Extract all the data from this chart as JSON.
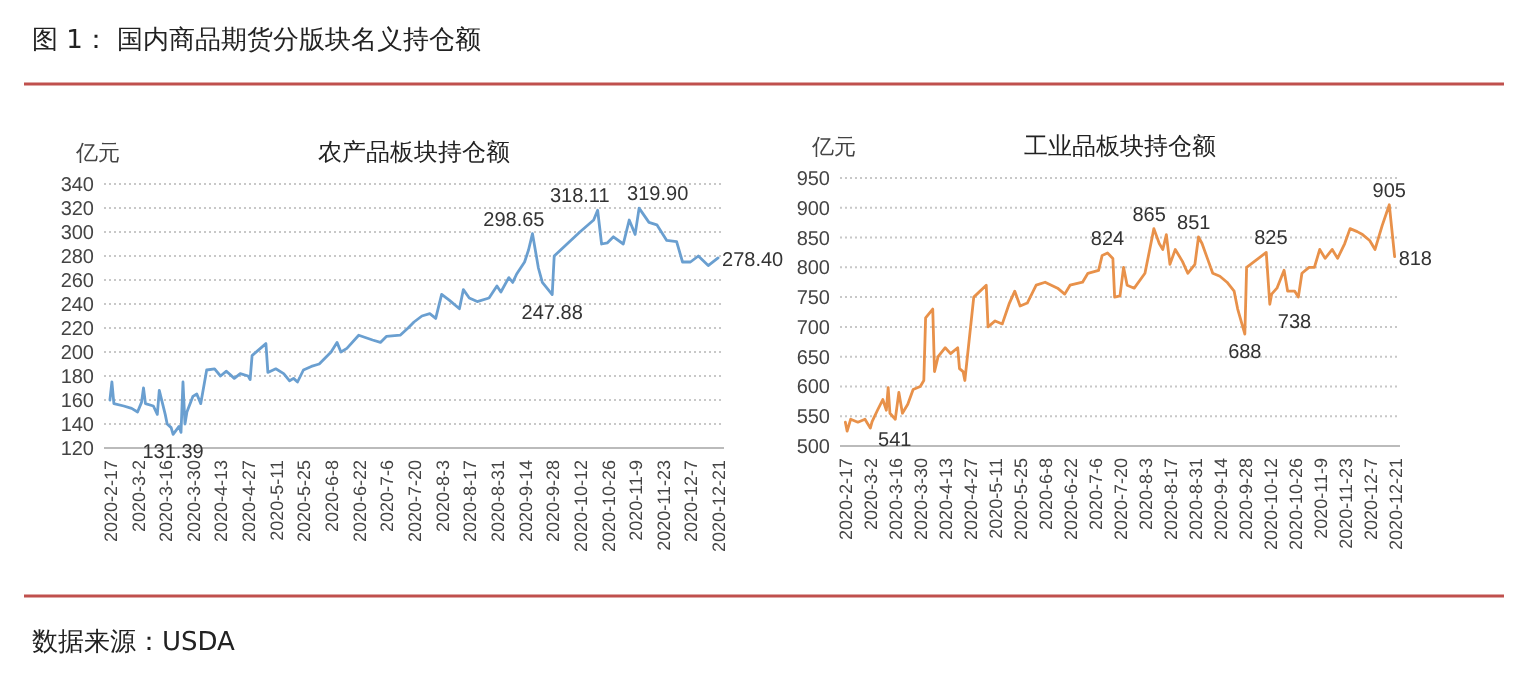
{
  "chart_data": [
    {
      "type": "line",
      "title": "农产品板块持仓额",
      "ylabel": "亿元",
      "annotations": [
        "图 1：  国内商品期货分版块名义持仓额",
        "数据来源：USDA",
        {
          "text": "131.39",
          "x": "2020-03-20",
          "y": 131.39
        },
        {
          "text": "298.65",
          "x": "2020-09-18",
          "y": 298.65
        },
        {
          "text": "247.88",
          "x": "2020-09-28",
          "y": 247.88
        },
        {
          "text": "318.11",
          "x": "2020-10-21",
          "y": 318.11
        },
        {
          "text": "319.90",
          "x": "2020-11-11",
          "y": 319.9
        },
        {
          "text": "278.40",
          "x": "2020-12-21",
          "y": 278.4
        }
      ],
      "x": [
        "2020-02-17",
        "2020-02-18",
        "2020-02-19",
        "2020-02-24",
        "2020-02-28",
        "2020-03-02",
        "2020-03-04",
        "2020-03-05",
        "2020-03-06",
        "2020-03-10",
        "2020-03-12",
        "2020-03-13",
        "2020-03-16",
        "2020-03-17",
        "2020-03-19",
        "2020-03-20",
        "2020-03-23",
        "2020-03-24",
        "2020-03-25",
        "2020-03-26",
        "2020-03-27",
        "2020-03-30",
        "2020-04-01",
        "2020-04-03",
        "2020-04-06",
        "2020-04-10",
        "2020-04-13",
        "2020-04-16",
        "2020-04-20",
        "2020-04-23",
        "2020-04-27",
        "2020-04-28",
        "2020-04-29",
        "2020-05-06",
        "2020-05-07",
        "2020-05-11",
        "2020-05-15",
        "2020-05-18",
        "2020-05-20",
        "2020-05-22",
        "2020-05-25",
        "2020-05-29",
        "2020-06-02",
        "2020-06-08",
        "2020-06-11",
        "2020-06-13",
        "2020-06-16",
        "2020-06-22",
        "2020-06-29",
        "2020-07-03",
        "2020-07-06",
        "2020-07-13",
        "2020-07-17",
        "2020-07-20",
        "2020-07-24",
        "2020-07-28",
        "2020-07-31",
        "2020-08-03",
        "2020-08-07",
        "2020-08-12",
        "2020-08-14",
        "2020-08-17",
        "2020-08-21",
        "2020-08-27",
        "2020-08-31",
        "2020-09-02",
        "2020-09-06",
        "2020-09-08",
        "2020-09-10",
        "2020-09-14",
        "2020-09-16",
        "2020-09-18",
        "2020-09-21",
        "2020-09-23",
        "2020-09-28",
        "2020-09-29",
        "2020-10-12",
        "2020-10-19",
        "2020-10-21",
        "2020-10-23",
        "2020-10-26",
        "2020-10-29",
        "2020-11-03",
        "2020-11-06",
        "2020-11-09",
        "2020-11-11",
        "2020-11-16",
        "2020-11-20",
        "2020-11-25",
        "2020-11-30",
        "2020-12-03",
        "2020-12-07",
        "2020-12-11",
        "2020-12-16",
        "2020-12-21"
      ],
      "series": [
        {
          "color": "#6a9fd0",
          "values": [
            160,
            175,
            157,
            155,
            153,
            150,
            158,
            170,
            157,
            155,
            148,
            168,
            148,
            140,
            137,
            131.39,
            138,
            133,
            175,
            140,
            150,
            163,
            165,
            157,
            185,
            186,
            180,
            184,
            178,
            182,
            180,
            177,
            197,
            207,
            183,
            186,
            182,
            176,
            178,
            175,
            185,
            188,
            190,
            200,
            208,
            200,
            203,
            214,
            210,
            208,
            213,
            214,
            220,
            225,
            230,
            232,
            228,
            248,
            243,
            236,
            252,
            245,
            242,
            245,
            255,
            250,
            262,
            258,
            265,
            275,
            285,
            298.65,
            270,
            258,
            247.88,
            280,
            300,
            310,
            318.11,
            290,
            291,
            296,
            290,
            310,
            298,
            319.9,
            308,
            306,
            293,
            292,
            275,
            275,
            280,
            272,
            278.4
          ]
        }
      ],
      "xlim": [
        "2020-02-14",
        "2020-12-24"
      ],
      "ylim": [
        120,
        340
      ],
      "yticks": [
        120,
        140,
        160,
        180,
        200,
        220,
        240,
        260,
        280,
        300,
        320,
        340
      ],
      "xticks": [
        {
          "value": "2020-02-17",
          "label": "2020-2-17"
        },
        {
          "value": "2020-03-02",
          "label": "2020-3-2"
        },
        {
          "value": "2020-03-16",
          "label": "2020-3-16"
        },
        {
          "value": "2020-03-30",
          "label": "2020-3-30"
        },
        {
          "value": "2020-04-13",
          "label": "2020-4-13"
        },
        {
          "value": "2020-04-27",
          "label": "2020-4-27"
        },
        {
          "value": "2020-05-11",
          "label": "2020-5-11"
        },
        {
          "value": "2020-05-25",
          "label": "2020-5-25"
        },
        {
          "value": "2020-06-08",
          "label": "2020-6-8"
        },
        {
          "value": "2020-06-22",
          "label": "2020-6-22"
        },
        {
          "value": "2020-07-06",
          "label": "2020-7-6"
        },
        {
          "value": "2020-07-20",
          "label": "2020-7-20"
        },
        {
          "value": "2020-08-03",
          "label": "2020-8-3"
        },
        {
          "value": "2020-08-17",
          "label": "2020-8-17"
        },
        {
          "value": "2020-08-31",
          "label": "2020-8-31"
        },
        {
          "value": "2020-09-14",
          "label": "2020-9-14"
        },
        {
          "value": "2020-09-28",
          "label": "2020-9-28"
        },
        {
          "value": "2020-10-12",
          "label": "2020-10-12"
        },
        {
          "value": "2020-10-26",
          "label": "2020-10-26"
        },
        {
          "value": "2020-11-09",
          "label": "2020-11-9"
        },
        {
          "value": "2020-11-23",
          "label": "2020-11-23"
        },
        {
          "value": "2020-12-07",
          "label": "2020-12-7"
        },
        {
          "value": "2020-12-21",
          "label": "2020-12-21"
        }
      ],
      "grid": "y"
    },
    {
      "type": "line",
      "title": "工业品板块持仓额",
      "ylabel": "亿元",
      "annotations": [
        {
          "text": "541",
          "x": "2020-03-03",
          "y": 541
        },
        {
          "text": "824",
          "x": "2020-07-13",
          "y": 824
        },
        {
          "text": "865",
          "x": "2020-08-08",
          "y": 865
        },
        {
          "text": "851",
          "x": "2020-09-02",
          "y": 851
        },
        {
          "text": "688",
          "x": "2020-09-28",
          "y": 688
        },
        {
          "text": "825",
          "x": "2020-10-10",
          "y": 825
        },
        {
          "text": "738",
          "x": "2020-10-12",
          "y": 738
        },
        {
          "text": "905",
          "x": "2020-12-18",
          "y": 905
        },
        {
          "text": "818",
          "x": "2020-12-21",
          "y": 818
        }
      ],
      "x": [
        "2020-02-17",
        "2020-02-18",
        "2020-02-20",
        "2020-02-24",
        "2020-02-28",
        "2020-03-02",
        "2020-03-03",
        "2020-03-06",
        "2020-03-09",
        "2020-03-11",
        "2020-03-12",
        "2020-03-13",
        "2020-03-16",
        "2020-03-18",
        "2020-03-20",
        "2020-03-23",
        "2020-03-26",
        "2020-03-30",
        "2020-04-01",
        "2020-04-02",
        "2020-04-06",
        "2020-04-07",
        "2020-04-09",
        "2020-04-13",
        "2020-04-16",
        "2020-04-20",
        "2020-04-21",
        "2020-04-23",
        "2020-04-24",
        "2020-04-29",
        "2020-05-06",
        "2020-05-07",
        "2020-05-11",
        "2020-05-15",
        "2020-05-19",
        "2020-05-22",
        "2020-05-25",
        "2020-05-29",
        "2020-06-03",
        "2020-06-08",
        "2020-06-15",
        "2020-06-19",
        "2020-06-22",
        "2020-06-29",
        "2020-07-02",
        "2020-07-08",
        "2020-07-10",
        "2020-07-13",
        "2020-07-16",
        "2020-07-17",
        "2020-07-20",
        "2020-07-22",
        "2020-07-24",
        "2020-07-28",
        "2020-08-03",
        "2020-08-06",
        "2020-08-08",
        "2020-08-11",
        "2020-08-13",
        "2020-08-15",
        "2020-08-17",
        "2020-08-20",
        "2020-08-24",
        "2020-08-27",
        "2020-08-31",
        "2020-09-02",
        "2020-09-04",
        "2020-09-07",
        "2020-09-10",
        "2020-09-14",
        "2020-09-18",
        "2020-09-22",
        "2020-09-24",
        "2020-09-28",
        "2020-09-29",
        "2020-10-10",
        "2020-10-12",
        "2020-10-13",
        "2020-10-16",
        "2020-10-20",
        "2020-10-22",
        "2020-10-26",
        "2020-10-28",
        "2020-10-30",
        "2020-11-03",
        "2020-11-06",
        "2020-11-09",
        "2020-11-12",
        "2020-11-16",
        "2020-11-19",
        "2020-11-23",
        "2020-11-26",
        "2020-11-30",
        "2020-12-03",
        "2020-12-07",
        "2020-12-10",
        "2020-12-14",
        "2020-12-18",
        "2020-12-21"
      ],
      "series": [
        {
          "color": "#e8914a",
          "values": [
            540,
            525,
            545,
            540,
            545,
            530,
            541,
            560,
            578,
            560,
            598,
            555,
            545,
            590,
            555,
            570,
            595,
            600,
            610,
            715,
            730,
            625,
            650,
            665,
            655,
            665,
            630,
            625,
            610,
            750,
            770,
            700,
            710,
            705,
            740,
            760,
            735,
            740,
            770,
            775,
            765,
            755,
            770,
            775,
            790,
            795,
            820,
            824,
            815,
            750,
            752,
            800,
            770,
            765,
            790,
            835,
            865,
            840,
            830,
            855,
            805,
            830,
            810,
            790,
            805,
            851,
            840,
            815,
            790,
            785,
            775,
            760,
            730,
            688,
            800,
            825,
            738,
            755,
            765,
            795,
            760,
            760,
            750,
            790,
            800,
            800,
            830,
            815,
            830,
            815,
            840,
            865,
            860,
            855,
            845,
            830,
            870,
            905,
            818
          ]
        }
      ],
      "xlim": [
        "2020-02-14",
        "2020-12-24"
      ],
      "ylim": [
        500,
        950
      ],
      "yticks": [
        500,
        550,
        600,
        650,
        700,
        750,
        800,
        850,
        900,
        950
      ],
      "xticks": [
        {
          "value": "2020-02-17",
          "label": "2020-2-17"
        },
        {
          "value": "2020-03-02",
          "label": "2020-3-2"
        },
        {
          "value": "2020-03-16",
          "label": "2020-3-16"
        },
        {
          "value": "2020-03-30",
          "label": "2020-3-30"
        },
        {
          "value": "2020-04-13",
          "label": "2020-4-13"
        },
        {
          "value": "2020-04-27",
          "label": "2020-4-27"
        },
        {
          "value": "2020-05-11",
          "label": "2020-5-11"
        },
        {
          "value": "2020-05-25",
          "label": "2020-5-25"
        },
        {
          "value": "2020-06-08",
          "label": "2020-6-8"
        },
        {
          "value": "2020-06-22",
          "label": "2020-6-22"
        },
        {
          "value": "2020-07-06",
          "label": "2020-7-6"
        },
        {
          "value": "2020-07-20",
          "label": "2020-7-20"
        },
        {
          "value": "2020-08-03",
          "label": "2020-8-3"
        },
        {
          "value": "2020-08-17",
          "label": "2020-8-17"
        },
        {
          "value": "2020-08-31",
          "label": "2020-8-31"
        },
        {
          "value": "2020-09-14",
          "label": "2020-9-14"
        },
        {
          "value": "2020-09-28",
          "label": "2020-9-28"
        },
        {
          "value": "2020-10-12",
          "label": "2020-10-12"
        },
        {
          "value": "2020-10-26",
          "label": "2020-10-26"
        },
        {
          "value": "2020-11-09",
          "label": "2020-11-9"
        },
        {
          "value": "2020-11-23",
          "label": "2020-11-23"
        },
        {
          "value": "2020-12-07",
          "label": "2020-12-7"
        },
        {
          "value": "2020-12-21",
          "label": "2020-12-21"
        }
      ],
      "grid": "y"
    }
  ]
}
